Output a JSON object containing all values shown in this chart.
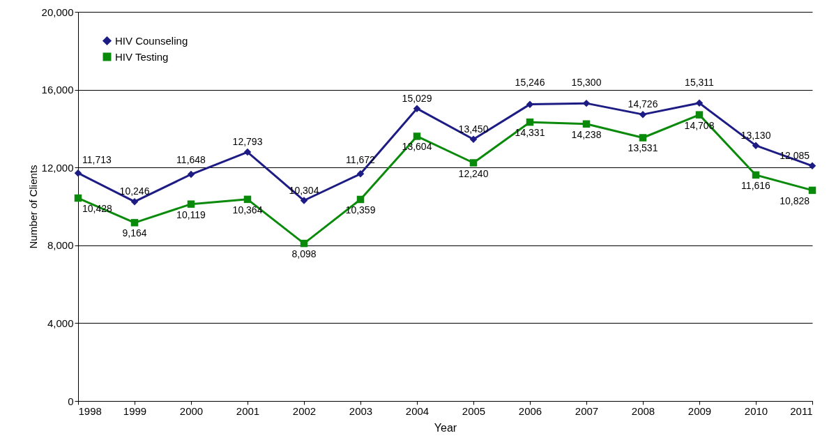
{
  "chart_data": {
    "type": "line",
    "xlabel": "Year",
    "ylabel": "Number of Clients",
    "x": [
      1998,
      1999,
      2000,
      2001,
      2002,
      2003,
      2004,
      2005,
      2006,
      2007,
      2008,
      2009,
      2010,
      2011
    ],
    "xlim": [
      1998,
      2011
    ],
    "xticks": [
      1998,
      1999,
      2000,
      2001,
      2002,
      2003,
      2004,
      2005,
      2006,
      2007,
      2008,
      2009,
      2010,
      2011
    ],
    "ylim": [
      0,
      20000
    ],
    "yticks": [
      0,
      {
        "value": 4000,
        "label": "4,000"
      },
      {
        "value": 8000,
        "label": "8,000"
      },
      {
        "value": 12000,
        "label": "12,000"
      },
      {
        "value": 16000,
        "label": "16,000"
      },
      {
        "value": 20000,
        "label": "20,000"
      }
    ],
    "grid": "y",
    "legend": "top left",
    "series": [
      {
        "name": "HIV Counseling",
        "color": "#1c1c84",
        "marker": "diamond",
        "values": [
          11713,
          10246,
          11648,
          12793,
          10304,
          11672,
          15029,
          13450,
          15246,
          15300,
          14726,
          15311,
          13130,
          12085
        ],
        "value_labels": [
          "11,713",
          "10,246",
          "11,648",
          "12,793",
          "10,304",
          "11,672",
          "15,029",
          "13,450",
          "15,246",
          "15,300",
          "14,726",
          "15,311",
          "13,130",
          "12,085"
        ]
      },
      {
        "name": "HIV Testing",
        "color": "#0a8a0a",
        "marker": "square",
        "values": [
          10428,
          9164,
          10119,
          10364,
          8098,
          10359,
          13604,
          12240,
          14331,
          14238,
          13531,
          14708,
          11616,
          10828
        ],
        "value_labels": [
          "10,428",
          "9,164",
          "10,119",
          "10,364",
          "8,098",
          "10,359",
          "13,604",
          "12,240",
          "14,331",
          "14,238",
          "13,531",
          "14,708",
          "11,616",
          "10,828"
        ]
      }
    ]
  }
}
